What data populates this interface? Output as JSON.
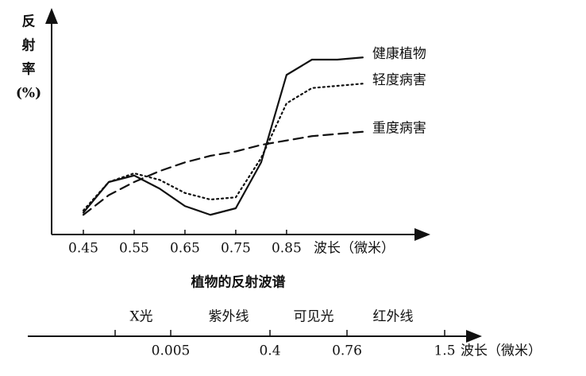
{
  "chart_data": [
    {
      "type": "line",
      "title": "植物的反射波谱",
      "y_label_lines": [
        "反",
        "射",
        "率",
        "(%)"
      ],
      "x_label": "波长（微米）",
      "x": [
        0.45,
        0.5,
        0.55,
        0.6,
        0.65,
        0.7,
        0.75,
        0.8,
        0.85,
        0.9,
        0.95,
        1.0
      ],
      "xlim": [
        0.3875,
        1.13
      ],
      "xticks": [
        0.45,
        0.55,
        0.65,
        0.75,
        0.85
      ],
      "ylim": [
        0,
        100
      ],
      "series": [
        {
          "name": "健康植物",
          "color": "#111111",
          "dash": "solid",
          "values": [
            10,
            24,
            27,
            21,
            13,
            9,
            12,
            33,
            73,
            80,
            80,
            81
          ]
        },
        {
          "name": "轻度病害",
          "color": "#111111",
          "dash": "dotted",
          "values": [
            11,
            24,
            28,
            25,
            19,
            16,
            17,
            35,
            60,
            67,
            68,
            69
          ]
        },
        {
          "name": "重度病害",
          "color": "#111111",
          "dash": "dashed",
          "values": [
            9,
            18,
            24,
            29,
            33,
            36,
            38,
            41,
            43,
            45,
            46,
            47
          ]
        }
      ]
    },
    {
      "type": "spectrum",
      "x_label": "波长（微米）",
      "ticks": [
        null,
        0.005,
        0.4,
        0.76,
        1.5
      ],
      "bands": [
        "X光",
        "紫外线",
        "可见光",
        "红外线"
      ]
    }
  ]
}
